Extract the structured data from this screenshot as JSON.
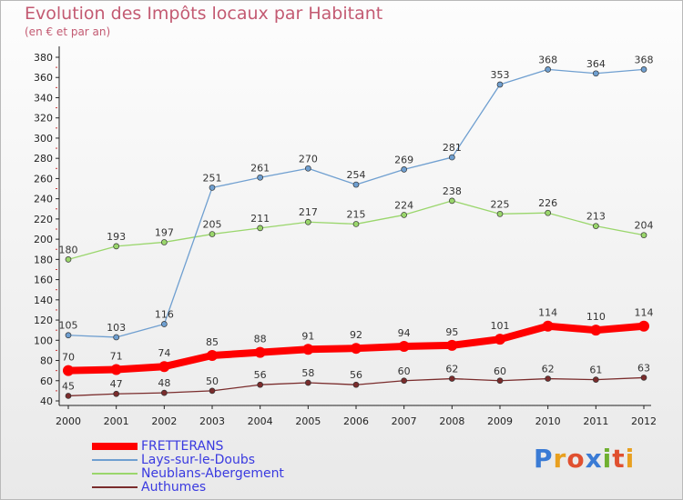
{
  "title": "Evolution des Impôts locaux par Habitant",
  "subtitle": "(en € et par an)",
  "logo_text": "Proxiti",
  "chart_data": {
    "type": "line",
    "title": "Evolution des Impôts locaux par Habitant",
    "subtitle": "(en € et par an)",
    "x": [
      "2000",
      "2001",
      "2002",
      "2003",
      "2004",
      "2005",
      "2006",
      "2007",
      "2008",
      "2009",
      "2010",
      "2011",
      "2012"
    ],
    "ylim": [
      40,
      380
    ],
    "yticks": [
      40,
      60,
      80,
      100,
      120,
      140,
      160,
      180,
      200,
      220,
      240,
      260,
      280,
      300,
      320,
      340,
      360,
      380
    ],
    "grid": false,
    "legend_position": "bottom",
    "series": [
      {
        "name": "FRETTERANS",
        "color": "#ff0000",
        "values": [
          70,
          71,
          74,
          85,
          88,
          91,
          92,
          94,
          95,
          101,
          114,
          110,
          114
        ]
      },
      {
        "name": "Lays-sur-le-Doubs",
        "color": "#6f9fd0",
        "values": [
          105,
          103,
          116,
          251,
          261,
          270,
          254,
          269,
          281,
          353,
          368,
          364,
          368
        ]
      },
      {
        "name": "Neublans-Abergement",
        "color": "#9ad66c",
        "values": [
          180,
          193,
          197,
          205,
          211,
          217,
          215,
          224,
          238,
          225,
          226,
          213,
          204
        ]
      },
      {
        "name": "Authumes",
        "color": "#7a2c2c",
        "values": [
          45,
          47,
          48,
          50,
          56,
          58,
          56,
          60,
          62,
          60,
          62,
          61,
          63
        ]
      }
    ]
  }
}
